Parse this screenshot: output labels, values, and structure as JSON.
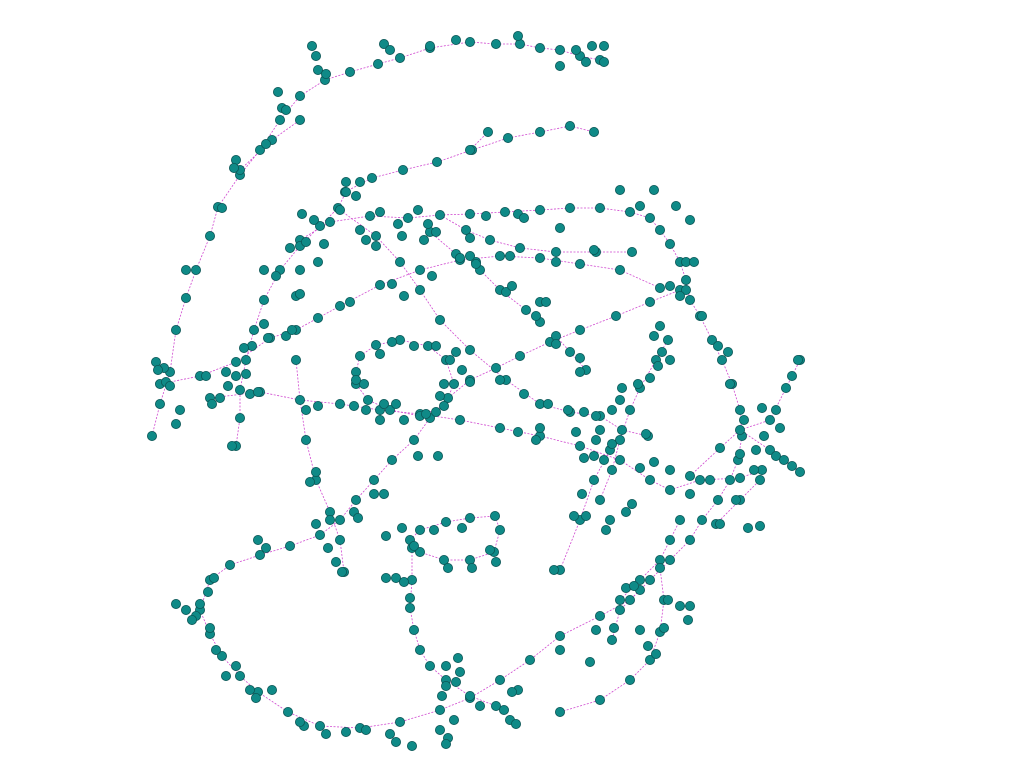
{
  "graph": {
    "node_color": "#0f8a87",
    "node_stroke": "#0b5555",
    "edge_color": "#d04ad0"
  }
}
